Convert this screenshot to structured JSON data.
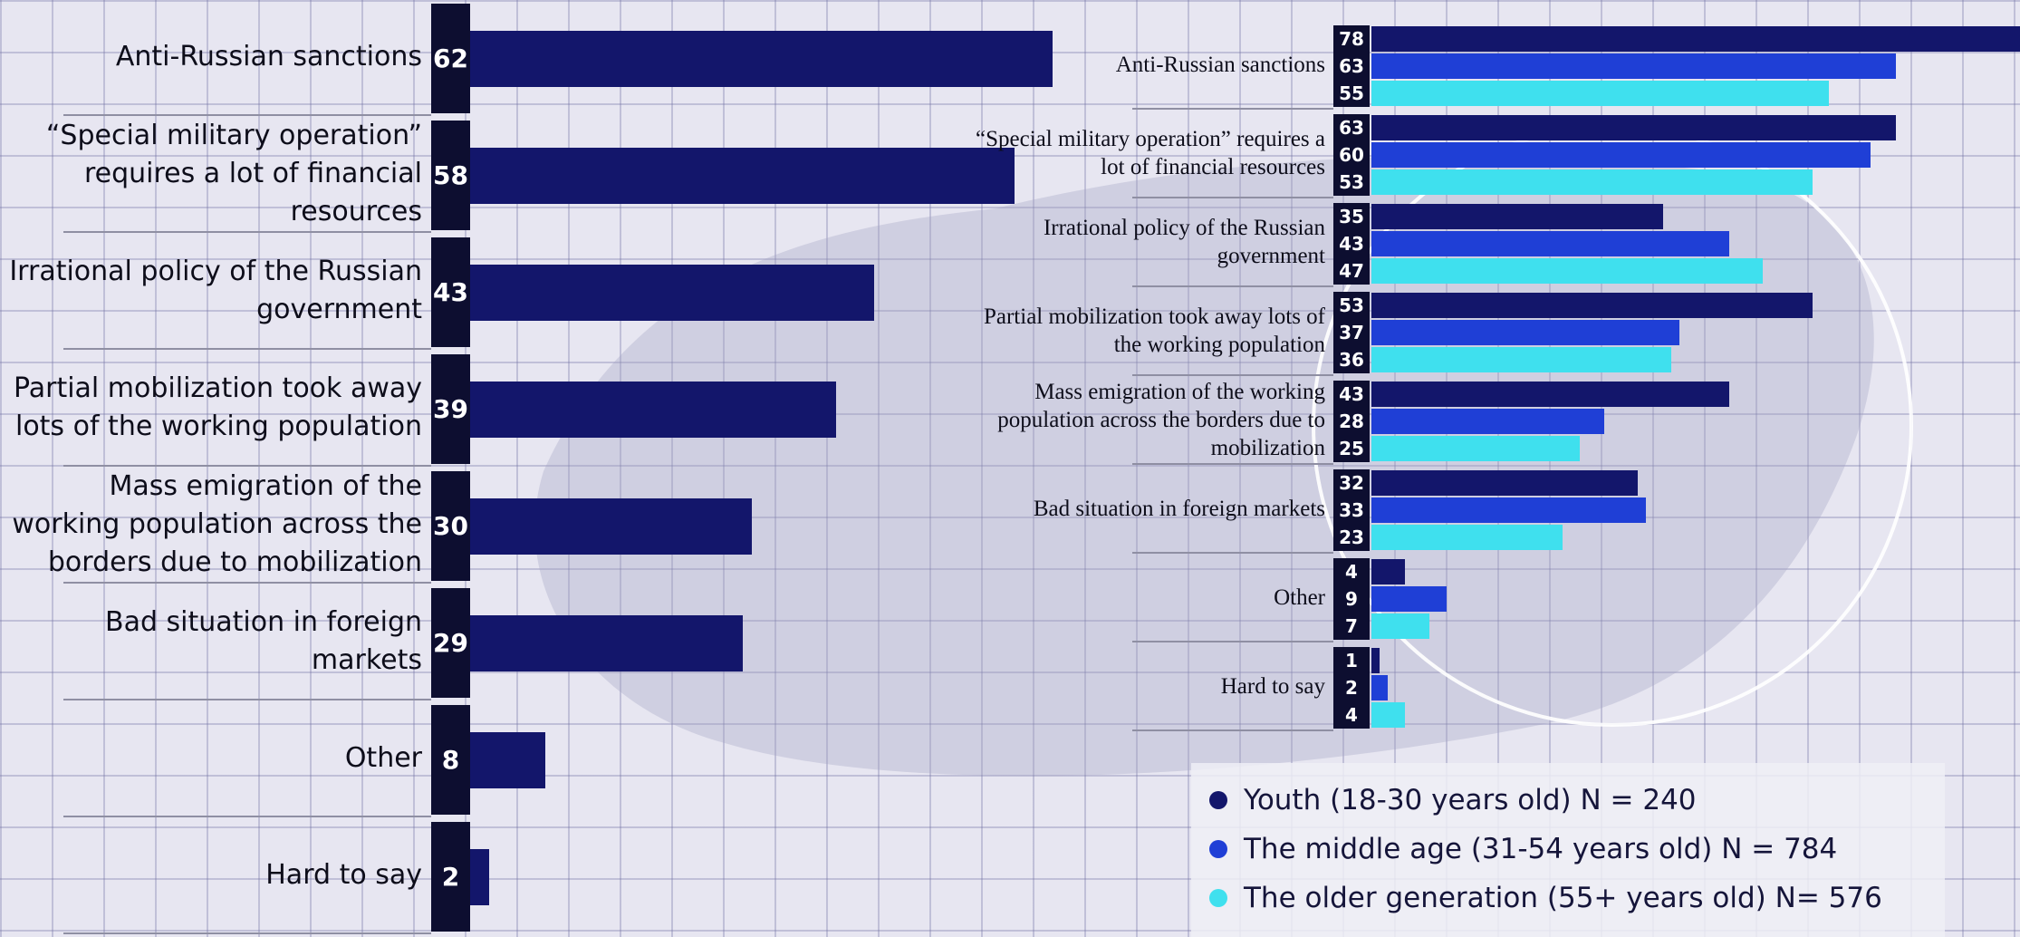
{
  "chart_data": [
    {
      "type": "bar",
      "orientation": "horizontal",
      "categories": [
        "Anti-Russian sanctions",
        "“Special military operation” requires a lot of financial resources",
        "Irrational policy of the Russian government",
        "Partial mobilization took away lots of the working population",
        "Mass emigration of the working population across the borders due to mobilization",
        "Bad situation in foreign markets",
        "Other",
        "Hard to say"
      ],
      "values": [
        62,
        58,
        43,
        39,
        30,
        29,
        8,
        2
      ],
      "color": "#13166b"
    },
    {
      "type": "bar",
      "orientation": "horizontal",
      "categories": [
        "Anti-Russian sanctions",
        "“Special military operation” requires a lot of financial resources",
        "Irrational policy of the Russian government",
        "Partial mobilization took away lots of the working population",
        "Mass emigration of the working population across the borders due to mobilization",
        "Bad situation in foreign markets",
        "Other",
        "Hard to say"
      ],
      "series": [
        {
          "name": "Youth (18-30 years old) N = 240",
          "color": "#13166b",
          "values": [
            78,
            63,
            35,
            53,
            43,
            32,
            4,
            1
          ]
        },
        {
          "name": "The middle age (31-54 years old) N = 784",
          "color": "#1f3fd6",
          "values": [
            63,
            60,
            43,
            37,
            28,
            33,
            9,
            2
          ]
        },
        {
          "name": "The older generation (55+ years old) N= 576",
          "color": "#3fe0ee",
          "values": [
            55,
            53,
            47,
            36,
            25,
            23,
            7,
            4
          ]
        }
      ]
    }
  ]
}
